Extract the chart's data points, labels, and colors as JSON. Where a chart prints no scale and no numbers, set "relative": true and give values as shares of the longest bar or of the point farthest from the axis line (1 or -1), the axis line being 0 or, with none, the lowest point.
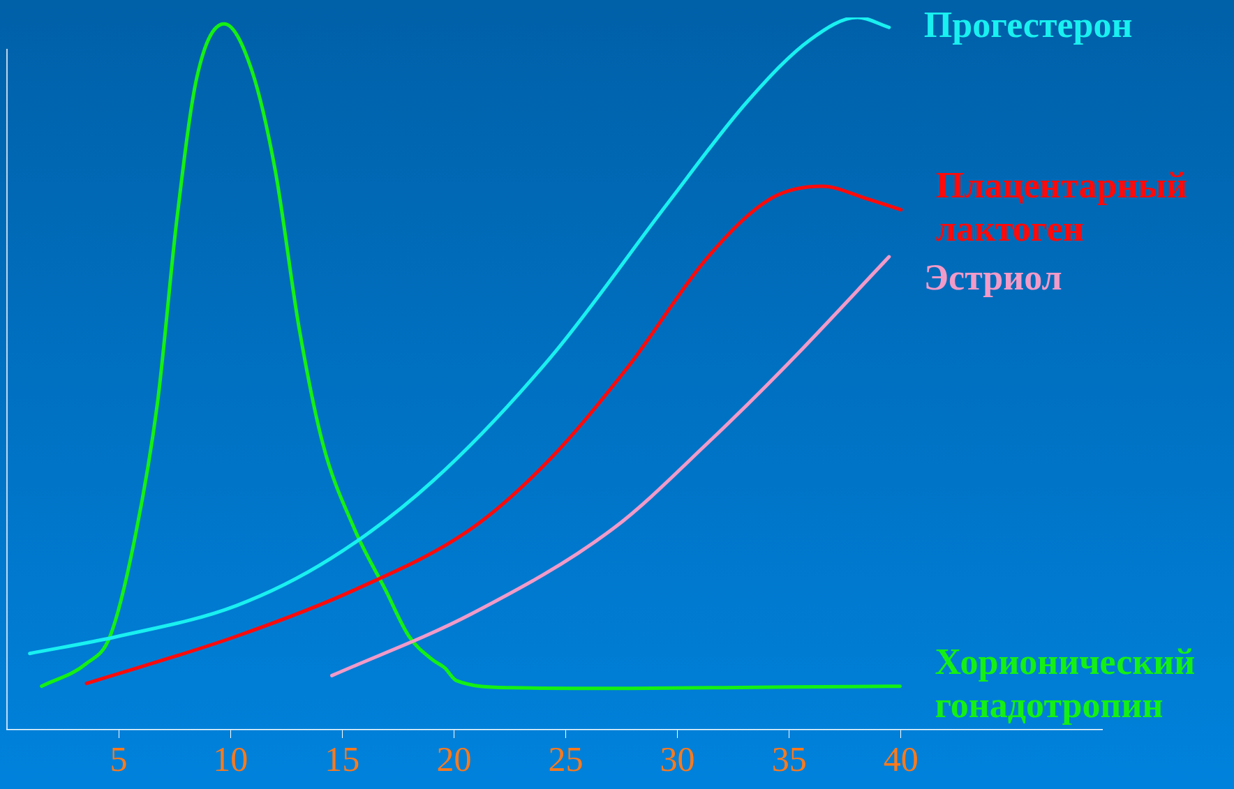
{
  "chart_data": {
    "type": "line",
    "relative": true,
    "legend": false,
    "grid": false,
    "tick_labels": "x",
    "marker": "none",
    "line_style": "solid",
    "xlim": [
      0,
      49
    ],
    "xticks": [
      5,
      10,
      15,
      20,
      25,
      30,
      35,
      40
    ],
    "series": [
      {
        "name": "Прогестерон",
        "color": "#19f0f0",
        "x": [
          1.02,
          4.96,
          10.25,
          14.47,
          19.05,
          24.33,
          29.61,
          33.13,
          35.95,
          38.06,
          39.47
        ],
        "values": [
          0.107,
          0.131,
          0.174,
          0.24,
          0.349,
          0.523,
          0.741,
          0.882,
          0.969,
          1,
          0.986
        ]
      },
      {
        "name": "Плацентарный лактоген",
        "color": "#ff0a0a",
        "x": [
          3.56,
          10.25,
          15.53,
          20.81,
          24.33,
          27.85,
          31.37,
          34.19,
          36.48,
          38.42,
          40.0
        ],
        "values": [
          0.065,
          0.131,
          0.196,
          0.283,
          0.381,
          0.512,
          0.664,
          0.746,
          0.763,
          0.746,
          0.73
        ]
      },
      {
        "name": "Эстриол",
        "color": "#f29ac8",
        "x": [
          14.54,
          20.81,
          27.15,
          31.37,
          34.89,
          39.47
        ],
        "values": [
          0.076,
          0.163,
          0.283,
          0.403,
          0.512,
          0.664
        ]
      },
      {
        "name": "Хорионический гонадотропин",
        "color": "#14f014",
        "x": [
          1.55,
          3.56,
          4.61,
          5.67,
          6.73,
          7.61,
          8.49,
          9.72,
          10.95,
          12.01,
          13.06,
          14.12,
          15.53,
          16.94,
          17.99,
          19.05,
          19.58,
          20.11,
          22.57,
          27.85,
          34.89,
          39.96
        ],
        "values": [
          0.061,
          0.093,
          0.131,
          0.261,
          0.458,
          0.719,
          0.915,
          0.991,
          0.926,
          0.784,
          0.566,
          0.403,
          0.283,
          0.196,
          0.131,
          0.098,
          0.087,
          0.069,
          0.059,
          0.058,
          0.06,
          0.061
        ]
      }
    ]
  }
}
